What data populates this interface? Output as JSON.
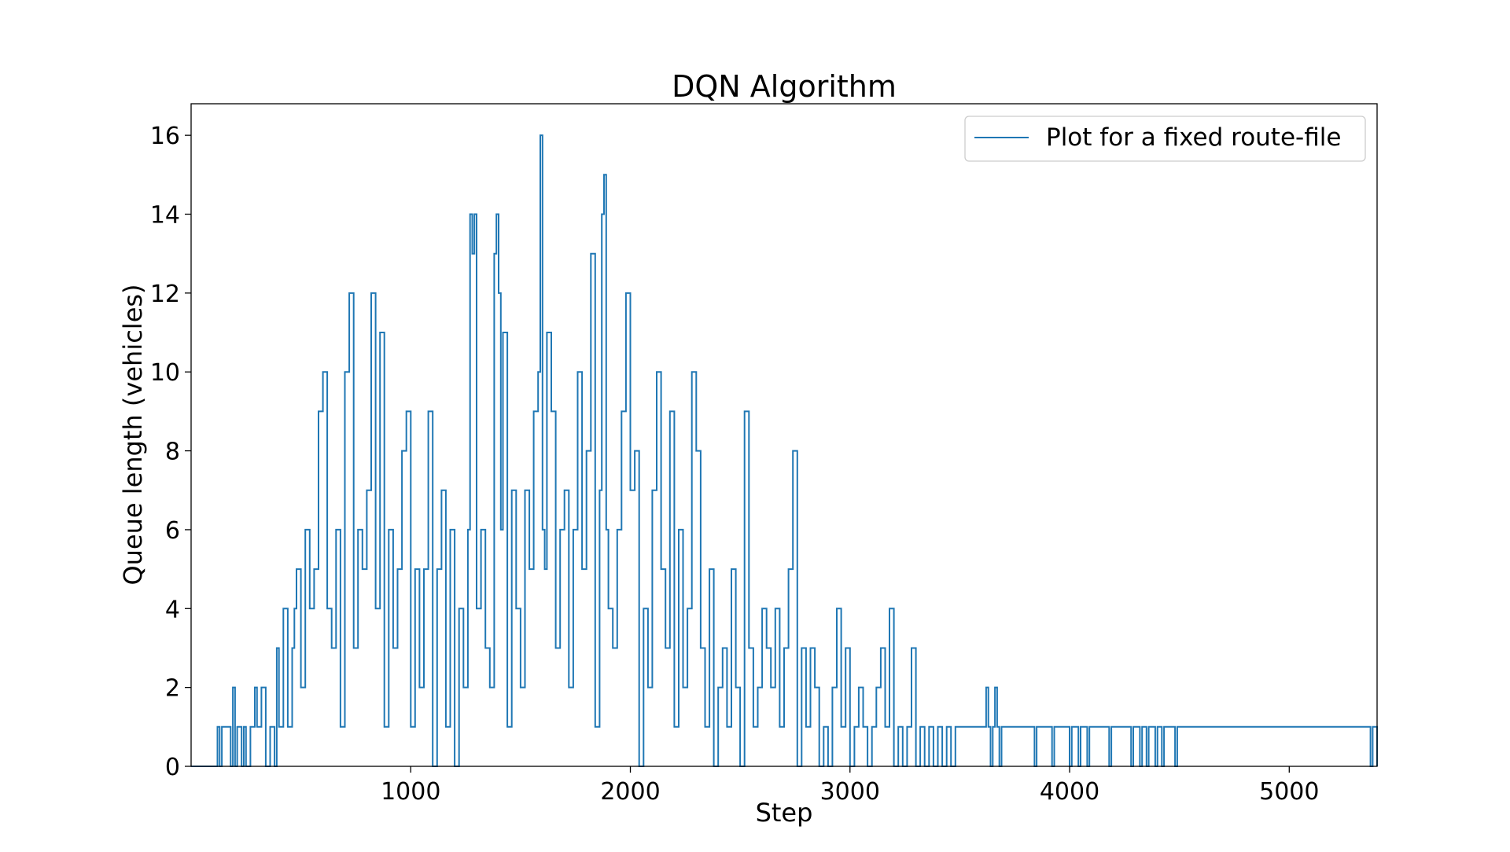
{
  "chart_data": {
    "type": "line",
    "title": "DQN Algorithm",
    "xlabel": "Step",
    "ylabel": "Queue length (vehicles)",
    "xlim": [
      0,
      5400
    ],
    "ylim": [
      0,
      16.8
    ],
    "x_ticks": [
      1000,
      2000,
      3000,
      4000,
      5000
    ],
    "x_tick_labels": [
      "1000",
      "2000",
      "3000",
      "4000",
      "5000"
    ],
    "y_ticks": [
      0,
      2,
      4,
      6,
      8,
      10,
      12,
      14,
      16
    ],
    "y_tick_labels": [
      "0",
      "2",
      "4",
      "6",
      "8",
      "10",
      "12",
      "14",
      "16"
    ],
    "grid": false,
    "legend_position": "upper-right",
    "series_color": "#1f77b4",
    "series": [
      {
        "name": "Plot for a fixed route-file",
        "drawstyle": "steps",
        "x": [
          0,
          120,
          130,
          140,
          180,
          190,
          200,
          210,
          230,
          240,
          250,
          270,
          290,
          300,
          320,
          340,
          360,
          380,
          390,
          400,
          420,
          440,
          460,
          470,
          480,
          500,
          520,
          540,
          560,
          580,
          600,
          620,
          640,
          660,
          680,
          700,
          720,
          740,
          760,
          780,
          800,
          820,
          840,
          860,
          880,
          900,
          920,
          940,
          960,
          980,
          1000,
          1020,
          1040,
          1060,
          1080,
          1100,
          1120,
          1140,
          1160,
          1180,
          1200,
          1220,
          1240,
          1260,
          1270,
          1280,
          1290,
          1300,
          1320,
          1340,
          1360,
          1380,
          1390,
          1400,
          1410,
          1420,
          1440,
          1460,
          1480,
          1500,
          1520,
          1540,
          1560,
          1580,
          1590,
          1600,
          1610,
          1620,
          1640,
          1660,
          1680,
          1700,
          1720,
          1740,
          1760,
          1780,
          1800,
          1820,
          1840,
          1860,
          1870,
          1880,
          1890,
          1900,
          1920,
          1940,
          1960,
          1980,
          2000,
          2020,
          2040,
          2060,
          2080,
          2100,
          2120,
          2140,
          2160,
          2180,
          2200,
          2220,
          2240,
          2260,
          2280,
          2300,
          2320,
          2340,
          2360,
          2380,
          2400,
          2420,
          2440,
          2460,
          2480,
          2500,
          2520,
          2540,
          2560,
          2580,
          2600,
          2620,
          2640,
          2660,
          2680,
          2700,
          2720,
          2740,
          2760,
          2780,
          2800,
          2820,
          2840,
          2860,
          2880,
          2900,
          2920,
          2940,
          2960,
          2980,
          3000,
          3020,
          3040,
          3060,
          3080,
          3100,
          3120,
          3140,
          3160,
          3180,
          3200,
          3220,
          3240,
          3260,
          3280,
          3300,
          3320,
          3340,
          3360,
          3380,
          3400,
          3420,
          3440,
          3460,
          3480,
          3620,
          3630,
          3640,
          3650,
          3660,
          3670,
          3680,
          3690,
          3840,
          3850,
          3920,
          3930,
          4000,
          4010,
          4040,
          4050,
          4080,
          4090,
          4180,
          4190,
          4280,
          4290,
          4320,
          4330,
          4350,
          4360,
          4390,
          4400,
          4420,
          4430,
          4480,
          4490,
          5370,
          5380,
          5400
        ],
        "y": [
          0,
          1,
          0,
          1,
          0,
          2,
          0,
          1,
          0,
          1,
          0,
          1,
          2,
          1,
          2,
          0,
          1,
          0,
          3,
          1,
          4,
          1,
          3,
          4,
          5,
          2,
          6,
          4,
          5,
          9,
          10,
          4,
          3,
          6,
          1,
          10,
          12,
          3,
          6,
          5,
          7,
          12,
          4,
          11,
          1,
          6,
          3,
          5,
          8,
          9,
          1,
          5,
          2,
          5,
          9,
          0,
          5,
          7,
          1,
          6,
          0,
          4,
          2,
          6,
          14,
          13,
          14,
          4,
          6,
          3,
          2,
          13,
          14,
          12,
          6,
          11,
          1,
          7,
          4,
          2,
          7,
          5,
          9,
          10,
          16,
          6,
          5,
          11,
          9,
          3,
          6,
          7,
          2,
          6,
          10,
          5,
          8,
          13,
          1,
          7,
          14,
          15,
          6,
          4,
          3,
          6,
          9,
          12,
          7,
          8,
          0,
          4,
          2,
          7,
          10,
          5,
          3,
          9,
          1,
          6,
          2,
          4,
          10,
          8,
          3,
          1,
          5,
          0,
          2,
          3,
          1,
          5,
          2,
          0,
          9,
          3,
          1,
          2,
          4,
          3,
          2,
          4,
          1,
          3,
          5,
          8,
          0,
          3,
          1,
          3,
          2,
          0,
          1,
          0,
          2,
          4,
          1,
          3,
          0,
          1,
          2,
          1,
          0,
          1,
          2,
          3,
          1,
          4,
          0,
          1,
          0,
          1,
          3,
          0,
          1,
          0,
          1,
          0,
          1,
          0,
          1,
          0,
          1,
          2,
          1,
          0,
          1,
          2,
          1,
          0,
          1,
          0,
          1,
          0,
          1,
          0,
          1,
          0,
          1,
          0,
          1,
          0,
          1,
          0,
          1,
          0,
          1,
          0,
          1,
          0,
          1,
          0,
          1,
          0,
          1,
          0,
          1,
          0
        ]
      }
    ]
  }
}
